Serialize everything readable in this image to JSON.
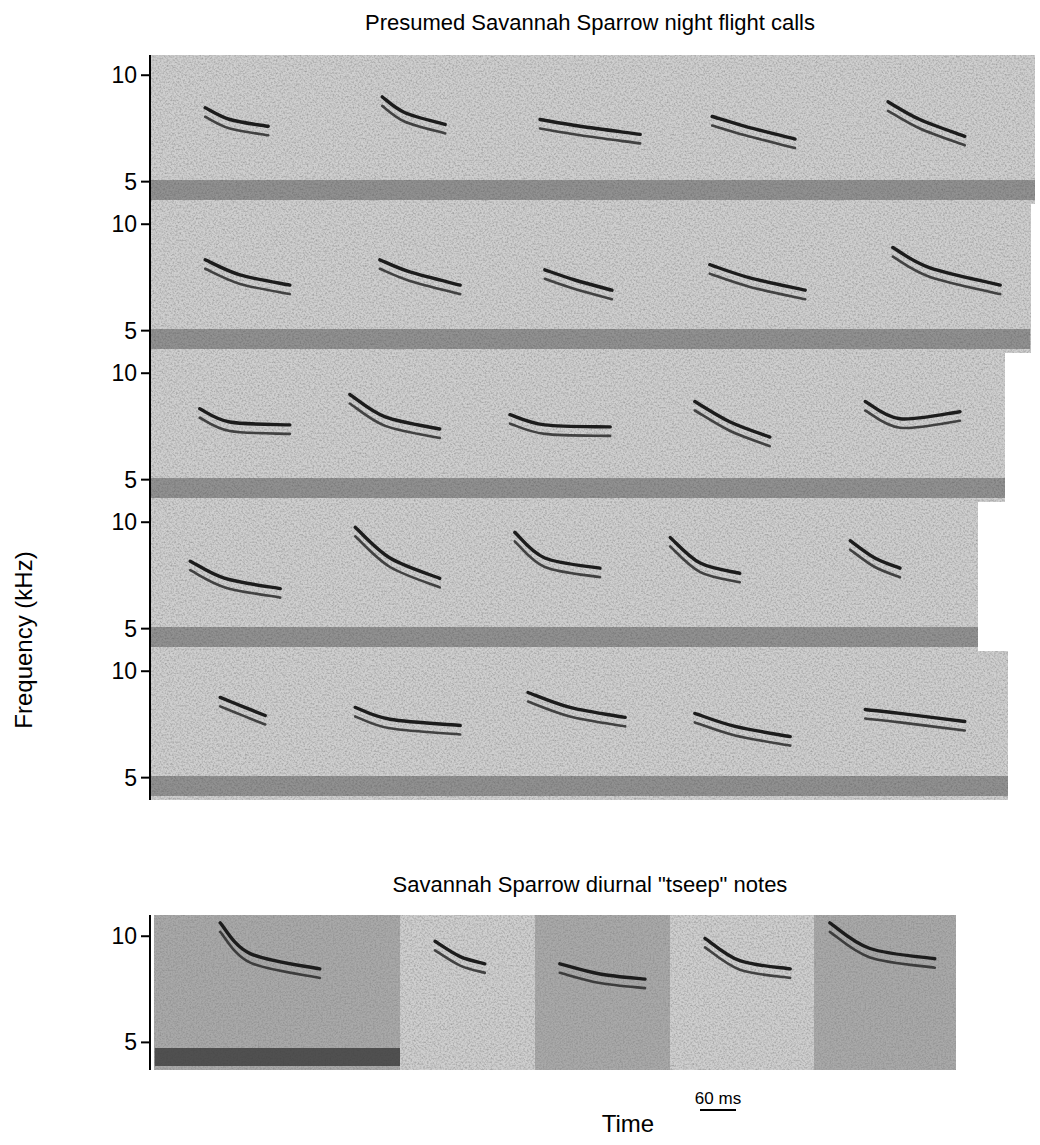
{
  "chart_data": {
    "type": "spectrogram",
    "y_label": "Frequency (kHz)",
    "x_label": "Time",
    "scale_bar": {
      "value": 60,
      "label": "60 ms"
    },
    "groups": [
      {
        "title": "Presumed Savannah Sparrow night flight calls",
        "panels": [
          {
            "xlim": [
              0,
              1475
            ],
            "ylim": [
              3.95,
              10.95
            ],
            "yticks": [
              5,
              10
            ],
            "calls": [
              {
                "x": [
                  92,
                  133,
                  197
                ],
                "y": [
                  8.47,
                  7.92,
                  7.6
                ]
              },
              {
                "x": [
                  387,
                  425,
                  492
                ],
                "y": [
                  8.98,
                  8.24,
                  7.69
                ]
              },
              {
                "x": [
                  650,
                  717,
                  817
                ],
                "y": [
                  7.92,
                  7.6,
                  7.22
                ]
              },
              {
                "x": [
                  937,
                  992,
                  1075
                ],
                "y": [
                  8.06,
                  7.6,
                  7.0
                ]
              },
              {
                "x": [
                  1230,
                  1283,
                  1358
                ],
                "y": [
                  8.75,
                  7.92,
                  7.13
                ]
              }
            ]
          },
          {
            "xlim": [
              0,
              1467
            ],
            "ylim": [
              3.95,
              10.95
            ],
            "yticks": [
              5,
              10
            ],
            "calls": [
              {
                "x": [
                  92,
                  150,
                  233
                ],
                "y": [
                  8.33,
                  7.62,
                  7.14
                ]
              },
              {
                "x": [
                  383,
                  433,
                  517
                ],
                "y": [
                  8.33,
                  7.76,
                  7.14
                ]
              },
              {
                "x": [
                  658,
                  708,
                  770
                ],
                "y": [
                  7.86,
                  7.38,
                  6.9
                ]
              },
              {
                "x": [
                  933,
                  1000,
                  1092
                ],
                "y": [
                  8.1,
                  7.48,
                  6.9
                ]
              },
              {
                "x": [
                  1238,
                  1300,
                  1417
                ],
                "y": [
                  8.9,
                  7.95,
                  7.14
                ]
              }
            ]
          },
          {
            "xlim": [
              0,
              1425
            ],
            "ylim": [
              3.95,
              10.95
            ],
            "yticks": [
              5,
              10
            ],
            "calls": [
              {
                "x": [
                  83,
                  133,
                  233
                ],
                "y": [
                  8.33,
                  7.71,
                  7.57
                ]
              },
              {
                "x": [
                  333,
                  392,
                  483
                ],
                "y": [
                  9.0,
                  7.95,
                  7.38
                ]
              },
              {
                "x": [
                  600,
                  658,
                  767
                ],
                "y": [
                  8.05,
                  7.57,
                  7.48
                ]
              },
              {
                "x": [
                  908,
                  967,
                  1033
                ],
                "y": [
                  8.67,
                  7.71,
                  7.0
                ]
              },
              {
                "x": [
                  1192,
                  1250,
                  1350
                ],
                "y": [
                  8.67,
                  7.86,
                  8.19
                ]
              }
            ]
          },
          {
            "xlim": [
              0,
              1380
            ],
            "ylim": [
              3.95,
              10.95
            ],
            "yticks": [
              5,
              10
            ],
            "calls": [
              {
                "x": [
                  67,
                  125,
                  217
                ],
                "y": [
                  8.17,
                  7.36,
                  6.88
                ]
              },
              {
                "x": [
                  342,
                  400,
                  483
                ],
                "y": [
                  9.76,
                  8.32,
                  7.36
                ]
              },
              {
                "x": [
                  608,
                  658,
                  750
                ],
                "y": [
                  9.52,
                  8.32,
                  7.84
                ]
              },
              {
                "x": [
                  867,
                  917,
                  983
                ],
                "y": [
                  9.28,
                  8.08,
                  7.6
                ]
              },
              {
                "x": [
                  1167,
                  1208,
                  1250
                ],
                "y": [
                  9.13,
                  8.32,
                  7.84
                ]
              }
            ]
          },
          {
            "xlim": [
              0,
              1430
            ],
            "ylim": [
              3.95,
              10.95
            ],
            "yticks": [
              5,
              10
            ],
            "calls": [
              {
                "x": [
                  117,
                  158,
                  192
                ],
                "y": [
                  8.77,
                  8.3,
                  7.92
                ]
              },
              {
                "x": [
                  342,
                  400,
                  517
                ],
                "y": [
                  8.3,
                  7.74,
                  7.45
                ]
              },
              {
                "x": [
                  630,
                  700,
                  792
                ],
                "y": [
                  9.0,
                  8.3,
                  7.83
                ]
              },
              {
                "x": [
                  908,
                  975,
                  1067
                ],
                "y": [
                  8.02,
                  7.41,
                  6.93
                ]
              },
              {
                "x": [
                  1192,
                  1250,
                  1358
                ],
                "y": [
                  8.2,
                  8.02,
                  7.64
                ]
              }
            ]
          }
        ]
      },
      {
        "title": "Savannah Sparrow diurnal \"tseep\" notes",
        "panels": [
          {
            "xlim": [
              0,
              1342
            ],
            "ylim": [
              3.7,
              11.0
            ],
            "yticks": [
              5,
              10
            ],
            "segments": [
              [
                8,
                417
              ],
              [
                417,
                642
              ],
              [
                642,
                867
              ],
              [
                867,
                1108
              ],
              [
                1108,
                1342
              ]
            ],
            "calls": [
              {
                "x": [
                  117,
                  167,
                  283
                ],
                "y": [
                  10.63,
                  9.18,
                  8.46
                ]
              },
              {
                "x": [
                  475,
                  517,
                  558
                ],
                "y": [
                  9.76,
                  9.04,
                  8.7
                ]
              },
              {
                "x": [
                  683,
                  750,
                  825
                ],
                "y": [
                  8.7,
                  8.22,
                  7.98
                ]
              },
              {
                "x": [
                  925,
                  983,
                  1067
                ],
                "y": [
                  9.9,
                  8.85,
                  8.46
                ]
              },
              {
                "x": [
                  1133,
                  1200,
                  1308
                ],
                "y": [
                  10.63,
                  9.42,
                  8.94
                ]
              }
            ]
          }
        ]
      }
    ]
  }
}
